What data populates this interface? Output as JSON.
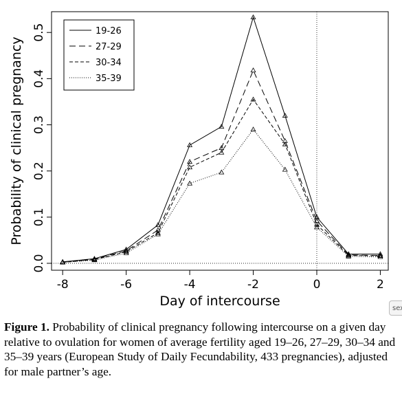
{
  "chart_data": {
    "type": "line",
    "title": "",
    "xlabel": "Day of intercourse",
    "ylabel": "Probability of clinical pregnancy",
    "x": [
      -8,
      -7,
      -6,
      -5,
      -4,
      -3,
      -2,
      -1,
      0,
      1,
      2
    ],
    "xlim": [
      -8.35,
      2.25
    ],
    "ylim": [
      -0.015,
      0.545
    ],
    "xticks": [
      -8,
      -6,
      -4,
      -2,
      0,
      2
    ],
    "xtick_labels": [
      "-8",
      "-6",
      "-4",
      "-2",
      "0",
      "2"
    ],
    "yticks": [
      0.0,
      0.1,
      0.2,
      0.3,
      0.4,
      0.5
    ],
    "ytick_labels": [
      "0.0",
      "0.1",
      "0.2",
      "0.3",
      "0.4",
      "0.5"
    ],
    "reference_lines": {
      "vertical_x": 0,
      "horizontal_y": 0
    },
    "legend_position": "top-left",
    "marker": "triangle",
    "series": [
      {
        "name": "19-26",
        "dash": "solid",
        "values": [
          0.003,
          0.01,
          0.03,
          0.083,
          0.256,
          0.296,
          0.533,
          0.32,
          0.1,
          0.02,
          0.02
        ]
      },
      {
        "name": "27-29",
        "dash": "long",
        "values": [
          0.003,
          0.009,
          0.027,
          0.072,
          0.22,
          0.25,
          0.418,
          0.265,
          0.092,
          0.018,
          0.017
        ]
      },
      {
        "name": "30-34",
        "dash": "medium",
        "values": [
          0.002,
          0.008,
          0.025,
          0.066,
          0.208,
          0.24,
          0.355,
          0.258,
          0.084,
          0.017,
          0.016
        ]
      },
      {
        "name": "35-39",
        "dash": "dotted",
        "values": [
          0.002,
          0.007,
          0.022,
          0.063,
          0.173,
          0.197,
          0.29,
          0.203,
          0.078,
          0.015,
          0.014
        ]
      }
    ]
  },
  "caption": {
    "label": "Figure 1.",
    "text": " Probability of clinical pregnancy following intercourse on a given day relative to ovulation for women of average fertility aged 19–26, 27–29, 30–34 and 35–39 years (European Study of Daily Fecundability, 433 pregnancies), adjusted for male partner’s age."
  },
  "stray_tag": "sex"
}
